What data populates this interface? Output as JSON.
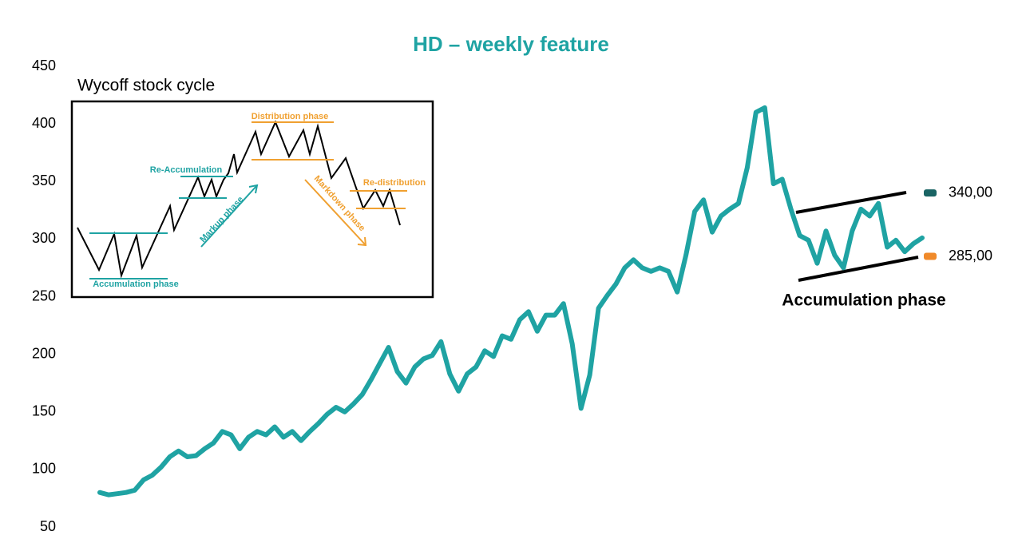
{
  "chart_data": {
    "type": "line",
    "title": "HD – weekly feature",
    "series": [
      {
        "name": "HD",
        "color": "#1fa3a3",
        "values": [
          80,
          78,
          79,
          80,
          82,
          91,
          95,
          102,
          111,
          116,
          111,
          112,
          118,
          123,
          133,
          130,
          118,
          128,
          133,
          130,
          137,
          128,
          133,
          125,
          133,
          140,
          148,
          154,
          150,
          157,
          165,
          178,
          192,
          206,
          185,
          175,
          189,
          196,
          199,
          211,
          183,
          168,
          183,
          189,
          203,
          198,
          216,
          213,
          230,
          237,
          220,
          234,
          234,
          244,
          209,
          153,
          182,
          240,
          251,
          261,
          275,
          282,
          275,
          272,
          275,
          272,
          254,
          286,
          324,
          334,
          306,
          320,
          326,
          331,
          362,
          410,
          414,
          348,
          352,
          326,
          303,
          299,
          279,
          307,
          286,
          275,
          307,
          326,
          320,
          331,
          293,
          299,
          289,
          296,
          301
        ]
      }
    ],
    "ylim": [
      50,
      450
    ],
    "yticks": [
      50,
      100,
      150,
      200,
      250,
      300,
      350,
      400,
      450
    ],
    "annotation": "Accumulation phase",
    "price_labels": [
      {
        "value": 340,
        "label": "340,00",
        "color": "#1a6464"
      },
      {
        "value": 285,
        "label": "285,00",
        "color": "#f08a2a"
      }
    ],
    "inset": {
      "title": "Wycoff stock cycle",
      "labels": [
        "Accumulation phase",
        "Re-Accumulation",
        "Markup phase",
        "Distribution phase",
        "Markdown phase",
        "Re-distribution"
      ]
    }
  }
}
